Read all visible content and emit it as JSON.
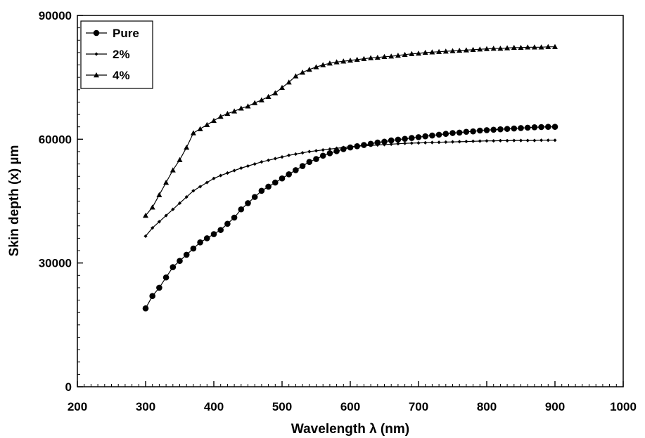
{
  "chart_data": {
    "type": "line",
    "title": "",
    "xlabel": "Wavelength λ (nm)",
    "ylabel": "Skin depth (x) µm",
    "xlim": [
      200,
      1000
    ],
    "ylim": [
      0,
      90000
    ],
    "x_ticks": [
      200,
      300,
      400,
      500,
      600,
      700,
      800,
      900,
      1000
    ],
    "y_ticks": [
      0,
      30000,
      60000,
      90000
    ],
    "x_tick_labels": [
      "200",
      "300",
      "400",
      "500",
      "600",
      "700",
      "800",
      "900",
      "1000"
    ],
    "y_tick_labels": [
      "0",
      "30000",
      "60000",
      "90000"
    ],
    "grid": false,
    "legend_position": "top-left",
    "series": [
      {
        "name": "Pure",
        "marker": "circle",
        "color": "#000000",
        "x": [
          300,
          310,
          320,
          330,
          340,
          350,
          360,
          370,
          380,
          390,
          400,
          410,
          420,
          430,
          440,
          450,
          460,
          470,
          480,
          490,
          500,
          510,
          520,
          530,
          540,
          550,
          560,
          570,
          580,
          590,
          600,
          610,
          620,
          630,
          640,
          650,
          660,
          670,
          680,
          690,
          700,
          710,
          720,
          730,
          740,
          750,
          760,
          770,
          780,
          790,
          800,
          810,
          820,
          830,
          840,
          850,
          860,
          870,
          880,
          890,
          900
        ],
        "y": [
          19000,
          22000,
          24000,
          26500,
          29000,
          30500,
          32000,
          33500,
          35000,
          36000,
          37000,
          38000,
          39500,
          41000,
          43000,
          44500,
          46000,
          47500,
          48500,
          49500,
          50500,
          51500,
          52500,
          53500,
          54500,
          55200,
          56000,
          56600,
          57100,
          57600,
          58000,
          58300,
          58600,
          58900,
          59200,
          59400,
          59700,
          59900,
          60100,
          60300,
          60500,
          60700,
          60900,
          61100,
          61300,
          61500,
          61600,
          61800,
          61900,
          62100,
          62200,
          62300,
          62400,
          62500,
          62600,
          62700,
          62800,
          62900,
          62950,
          63000,
          63000
        ]
      },
      {
        "name": "2%",
        "marker": "diamond",
        "color": "#000000",
        "x": [
          300,
          310,
          320,
          330,
          340,
          350,
          360,
          370,
          380,
          390,
          400,
          410,
          420,
          430,
          440,
          450,
          460,
          470,
          480,
          490,
          500,
          510,
          520,
          530,
          540,
          550,
          560,
          570,
          580,
          590,
          600,
          610,
          620,
          630,
          640,
          650,
          660,
          670,
          680,
          690,
          700,
          710,
          720,
          730,
          740,
          750,
          760,
          770,
          780,
          790,
          800,
          810,
          820,
          830,
          840,
          850,
          860,
          870,
          880,
          890,
          900
        ],
        "y": [
          36500,
          38500,
          40000,
          41500,
          43000,
          44500,
          46000,
          47500,
          48500,
          49500,
          50500,
          51200,
          51800,
          52400,
          53000,
          53500,
          54000,
          54500,
          54900,
          55300,
          55700,
          56100,
          56400,
          56700,
          57000,
          57200,
          57400,
          57600,
          57800,
          58000,
          58200,
          58300,
          58400,
          58500,
          58600,
          58700,
          58800,
          58900,
          59000,
          59050,
          59100,
          59150,
          59200,
          59250,
          59300,
          59350,
          59400,
          59450,
          59500,
          59550,
          59600,
          59600,
          59650,
          59650,
          59700,
          59700,
          59700,
          59700,
          59750,
          59750,
          59750
        ]
      },
      {
        "name": "4%",
        "marker": "triangle",
        "color": "#000000",
        "x": [
          300,
          310,
          320,
          330,
          340,
          350,
          360,
          370,
          380,
          390,
          400,
          410,
          420,
          430,
          440,
          450,
          460,
          470,
          480,
          490,
          500,
          510,
          520,
          530,
          540,
          550,
          560,
          570,
          580,
          590,
          600,
          610,
          620,
          630,
          640,
          650,
          660,
          670,
          680,
          690,
          700,
          710,
          720,
          730,
          740,
          750,
          760,
          770,
          780,
          790,
          800,
          810,
          820,
          830,
          840,
          850,
          860,
          870,
          880,
          890,
          900
        ],
        "y": [
          41500,
          43500,
          46500,
          49500,
          52500,
          55000,
          58000,
          61500,
          62500,
          63500,
          64500,
          65500,
          66200,
          66800,
          67500,
          68000,
          68800,
          69500,
          70300,
          71200,
          72500,
          73800,
          75300,
          76200,
          76900,
          77500,
          78000,
          78400,
          78700,
          78900,
          79100,
          79300,
          79500,
          79700,
          79800,
          80000,
          80100,
          80300,
          80500,
          80700,
          80800,
          81000,
          81100,
          81200,
          81300,
          81400,
          81500,
          81600,
          81700,
          81800,
          81900,
          82000,
          82000,
          82100,
          82200,
          82200,
          82300,
          82300,
          82300,
          82400,
          82400
        ]
      }
    ]
  }
}
